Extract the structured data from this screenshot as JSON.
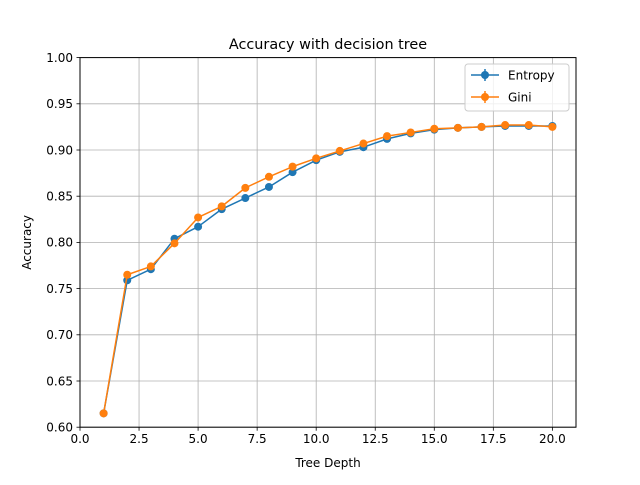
{
  "chart_data": {
    "type": "line",
    "title": "Accuracy with decision tree",
    "xlabel": "Tree Depth",
    "ylabel": "Accuracy",
    "xlim": [
      0.0,
      21.0
    ],
    "ylim": [
      0.6,
      1.0
    ],
    "x_ticks": [
      "0.0",
      "2.5",
      "5.0",
      "7.5",
      "10.0",
      "12.5",
      "15.0",
      "17.5",
      "20.0"
    ],
    "y_ticks": [
      "0.60",
      "0.65",
      "0.70",
      "0.75",
      "0.80",
      "0.85",
      "0.90",
      "0.95",
      "1.00"
    ],
    "grid": true,
    "legend_position": "top-right",
    "x": [
      1,
      2,
      3,
      4,
      5,
      6,
      7,
      8,
      9,
      10,
      11,
      12,
      13,
      14,
      15,
      16,
      17,
      18,
      19,
      20
    ],
    "series": [
      {
        "name": "Entropy",
        "color": "#1f77b4",
        "values": [
          0.615,
          0.759,
          0.771,
          0.804,
          0.817,
          0.836,
          0.848,
          0.86,
          0.876,
          0.889,
          0.898,
          0.903,
          0.912,
          0.918,
          0.922,
          0.924,
          0.925,
          0.926,
          0.926,
          0.926
        ]
      },
      {
        "name": "Gini",
        "color": "#ff7f0e",
        "values": [
          0.615,
          0.765,
          0.774,
          0.799,
          0.827,
          0.839,
          0.859,
          0.871,
          0.882,
          0.891,
          0.899,
          0.907,
          0.915,
          0.919,
          0.923,
          0.924,
          0.925,
          0.927,
          0.927,
          0.925
        ]
      }
    ]
  }
}
